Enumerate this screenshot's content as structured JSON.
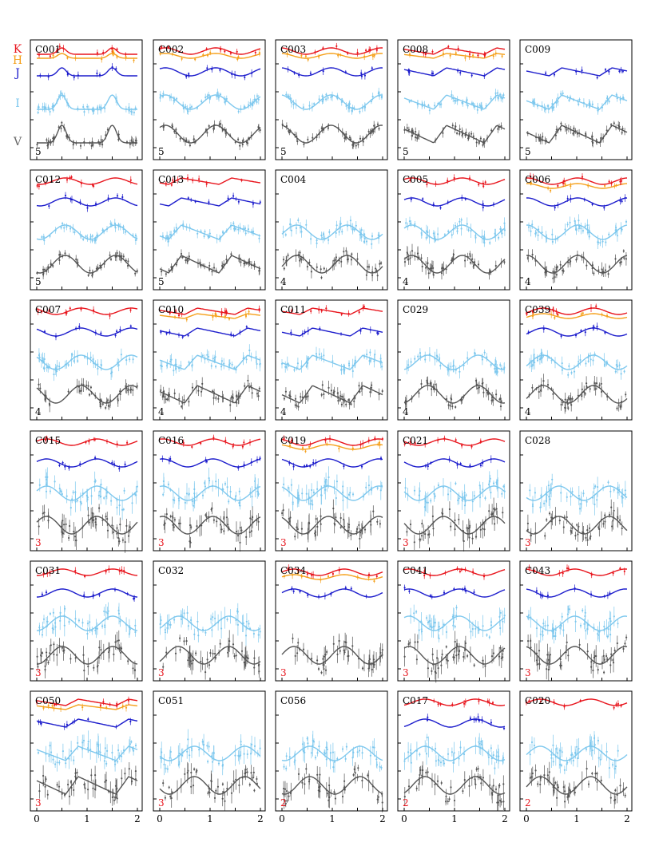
{
  "band_labels": [
    {
      "text": "K",
      "color": "#e8141c"
    },
    {
      "text": "H",
      "color": "#f5a01a"
    },
    {
      "text": "J",
      "color": "#1c1ccc"
    },
    {
      "text": "I",
      "color": "#7ec8ee"
    },
    {
      "text": "V",
      "color": "#666666"
    }
  ],
  "chart_data": {
    "type": "scatter",
    "description_axis": "phase",
    "xlim": [
      0,
      2
    ],
    "x_ticks": [
      "0",
      "1",
      "2"
    ],
    "bands": [
      "K",
      "H",
      "J",
      "I",
      "V"
    ],
    "band_colors": {
      "K": "#e8141c",
      "H": "#f5a01a",
      "J": "#1c1ccc",
      "I": "#7ec8ee",
      "V": "#555555"
    },
    "class_colors": {
      "default": "#000000",
      "3": "#e8141c",
      "2": "#e8141c"
    },
    "panels": [
      {
        "id": "C001",
        "class": "5",
        "bands": [
          "K",
          "H",
          "J",
          "I",
          "V"
        ],
        "shape": "ecl"
      },
      {
        "id": "C002",
        "class": "5",
        "bands": [
          "K",
          "H",
          "J",
          "I",
          "V"
        ],
        "shape": "sin"
      },
      {
        "id": "C003",
        "class": "5",
        "bands": [
          "K",
          "H",
          "J",
          "I",
          "V"
        ],
        "shape": "sin"
      },
      {
        "id": "C008",
        "class": "5",
        "bands": [
          "K",
          "H",
          "J",
          "I",
          "V"
        ],
        "shape": "saw"
      },
      {
        "id": "C009",
        "class": "5",
        "bands": [
          "J",
          "I",
          "V"
        ],
        "shape": "saw"
      },
      {
        "id": "C012",
        "class": "5",
        "bands": [
          "K",
          "J",
          "I",
          "V"
        ],
        "shape": "sin"
      },
      {
        "id": "C013",
        "class": "5",
        "bands": [
          "K",
          "J",
          "I",
          "V"
        ],
        "shape": "saw"
      },
      {
        "id": "C004",
        "class": "4",
        "bands": [
          "I",
          "V"
        ],
        "shape": "sin"
      },
      {
        "id": "C005",
        "class": "4",
        "bands": [
          "K",
          "J",
          "I",
          "V"
        ],
        "shape": "sin"
      },
      {
        "id": "C006",
        "class": "4",
        "bands": [
          "K",
          "H",
          "J",
          "I",
          "V"
        ],
        "shape": "sin"
      },
      {
        "id": "C007",
        "class": "4",
        "bands": [
          "K",
          "J",
          "I",
          "V"
        ],
        "shape": "sin"
      },
      {
        "id": "C010",
        "class": "4",
        "bands": [
          "K",
          "H",
          "J",
          "I",
          "V"
        ],
        "shape": "saw"
      },
      {
        "id": "C011",
        "class": "4",
        "bands": [
          "K",
          "J",
          "I",
          "V"
        ],
        "shape": "saw"
      },
      {
        "id": "C029",
        "class": "4",
        "bands": [
          "I",
          "V"
        ],
        "shape": "sin"
      },
      {
        "id": "C039",
        "class": "4",
        "bands": [
          "K",
          "H",
          "J",
          "I",
          "V"
        ],
        "shape": "sin"
      },
      {
        "id": "C015",
        "class": "3",
        "bands": [
          "K",
          "J",
          "I",
          "V"
        ],
        "shape": "sin"
      },
      {
        "id": "C016",
        "class": "3",
        "bands": [
          "K",
          "J",
          "I",
          "V"
        ],
        "shape": "sin"
      },
      {
        "id": "C019",
        "class": "3",
        "bands": [
          "K",
          "H",
          "J",
          "I",
          "V"
        ],
        "shape": "sin"
      },
      {
        "id": "C021",
        "class": "3",
        "bands": [
          "K",
          "J",
          "I",
          "V"
        ],
        "shape": "sin"
      },
      {
        "id": "C028",
        "class": "3",
        "bands": [
          "I",
          "V"
        ],
        "shape": "sin"
      },
      {
        "id": "C031",
        "class": "3",
        "bands": [
          "K",
          "J",
          "I",
          "V"
        ],
        "shape": "sin"
      },
      {
        "id": "C032",
        "class": "3",
        "bands": [
          "I",
          "V"
        ],
        "shape": "sin"
      },
      {
        "id": "C034",
        "class": "3",
        "bands": [
          "K",
          "H",
          "J",
          "V"
        ],
        "shape": "sin"
      },
      {
        "id": "C041",
        "class": "3",
        "bands": [
          "K",
          "J",
          "I",
          "V"
        ],
        "shape": "sin"
      },
      {
        "id": "C043",
        "class": "3",
        "bands": [
          "K",
          "J",
          "I",
          "V"
        ],
        "shape": "sin"
      },
      {
        "id": "C050",
        "class": "3",
        "bands": [
          "K",
          "H",
          "J",
          "I",
          "V"
        ],
        "shape": "saw"
      },
      {
        "id": "C051",
        "class": "3",
        "bands": [
          "I",
          "V"
        ],
        "shape": "sin"
      },
      {
        "id": "C056",
        "class": "2",
        "bands": [
          "I",
          "V"
        ],
        "shape": "sin"
      },
      {
        "id": "C017",
        "class": "2",
        "bands": [
          "K",
          "J",
          "I",
          "V"
        ],
        "shape": "sin"
      },
      {
        "id": "C020",
        "class": "2",
        "bands": [
          "K",
          "I",
          "V"
        ],
        "shape": "sin"
      }
    ]
  }
}
